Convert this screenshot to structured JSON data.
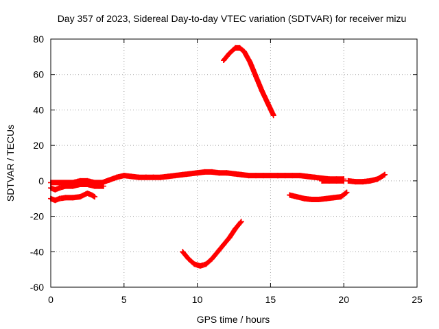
{
  "chart_data": {
    "type": "scatter",
    "title": "Day 357 of 2023, Sidereal Day-to-day VTEC variation (SDTVAR) for receiver mizu",
    "xlabel": "GPS time / hours",
    "ylabel": "SDTVAR / TECUs",
    "xlim": [
      0,
      25
    ],
    "ylim": [
      -60,
      80
    ],
    "xticks": [
      "0",
      "5",
      "10",
      "15",
      "20",
      "25"
    ],
    "yticks": [
      "-60",
      "-40",
      "-20",
      "0",
      "20",
      "40",
      "60",
      "80"
    ],
    "grid": true,
    "marker": "+",
    "color": "#ff0000",
    "series": [
      {
        "name": "arc-main-upper",
        "x": [
          0,
          0.5,
          1,
          1.5,
          2,
          2.5,
          3,
          3.5,
          4,
          4.5,
          5,
          5.5,
          6,
          6.5,
          7,
          7.5,
          8,
          8.5,
          9,
          9.5,
          10,
          10.5,
          11,
          11.5,
          12,
          12.5,
          13,
          13.5,
          14,
          14.5,
          15,
          15.5
        ],
        "y": [
          -1,
          -1,
          -1,
          -1,
          0,
          0,
          -1,
          -1,
          0.5,
          2,
          3,
          2.5,
          2,
          2,
          2,
          2,
          2.5,
          3,
          3.5,
          4,
          4.5,
          5,
          5,
          4.5,
          4.5,
          4,
          3.5,
          3,
          3,
          3,
          3,
          3
        ]
      },
      {
        "name": "arc-early-lower",
        "x": [
          0,
          0.3,
          0.6,
          1,
          1.5,
          2,
          2.5,
          3,
          3.3,
          3.6
        ],
        "y": [
          -4,
          -5,
          -4,
          -3,
          -3,
          -2,
          -2,
          -3,
          -3,
          -3
        ]
      },
      {
        "name": "arc-low-left",
        "x": [
          0,
          0.3,
          0.6,
          1,
          1.5,
          2,
          2.5,
          2.8,
          3.0
        ],
        "y": [
          -10,
          -11,
          -10,
          -9.5,
          -9.5,
          -9,
          -7,
          -8,
          -9
        ]
      },
      {
        "name": "arc-late-upper",
        "x": [
          15.5,
          16,
          16.5,
          17,
          17.5,
          18,
          18.5,
          19,
          19.5,
          20
        ],
        "y": [
          3,
          3,
          3,
          3,
          2.5,
          2,
          1.5,
          1,
          1,
          1
        ]
      },
      {
        "name": "arc-late-lower",
        "x": [
          18.5,
          19,
          19.5,
          20
        ],
        "y": [
          0,
          0,
          0,
          0
        ]
      },
      {
        "name": "arc-end",
        "x": [
          20.3,
          20.8,
          21.3,
          21.8,
          22.3,
          22.8
        ],
        "y": [
          0,
          -0.5,
          -0.5,
          0,
          1,
          3.5
        ]
      },
      {
        "name": "arc-high",
        "x": [
          11.8,
          12.2,
          12.6,
          12.9,
          13.2,
          13.6,
          14,
          14.4,
          14.8,
          15.2
        ],
        "y": [
          68,
          72,
          75,
          75,
          73,
          67,
          59,
          51,
          44,
          37
        ]
      },
      {
        "name": "arc-low",
        "x": [
          9,
          9.4,
          9.8,
          10.2,
          10.6,
          11,
          11.4,
          11.8,
          12.2,
          12.6,
          13
        ],
        "y": [
          -40,
          -44,
          -47,
          -48,
          -47,
          -44,
          -40,
          -36,
          -32,
          -27,
          -23
        ]
      },
      {
        "name": "arc-neg-10",
        "x": [
          16.3,
          16.8,
          17.3,
          17.8,
          18.3,
          18.8,
          19.3,
          19.8,
          20.2
        ],
        "y": [
          -8,
          -9,
          -10,
          -10.5,
          -10.5,
          -10,
          -9.5,
          -9,
          -6.5
        ]
      }
    ]
  }
}
